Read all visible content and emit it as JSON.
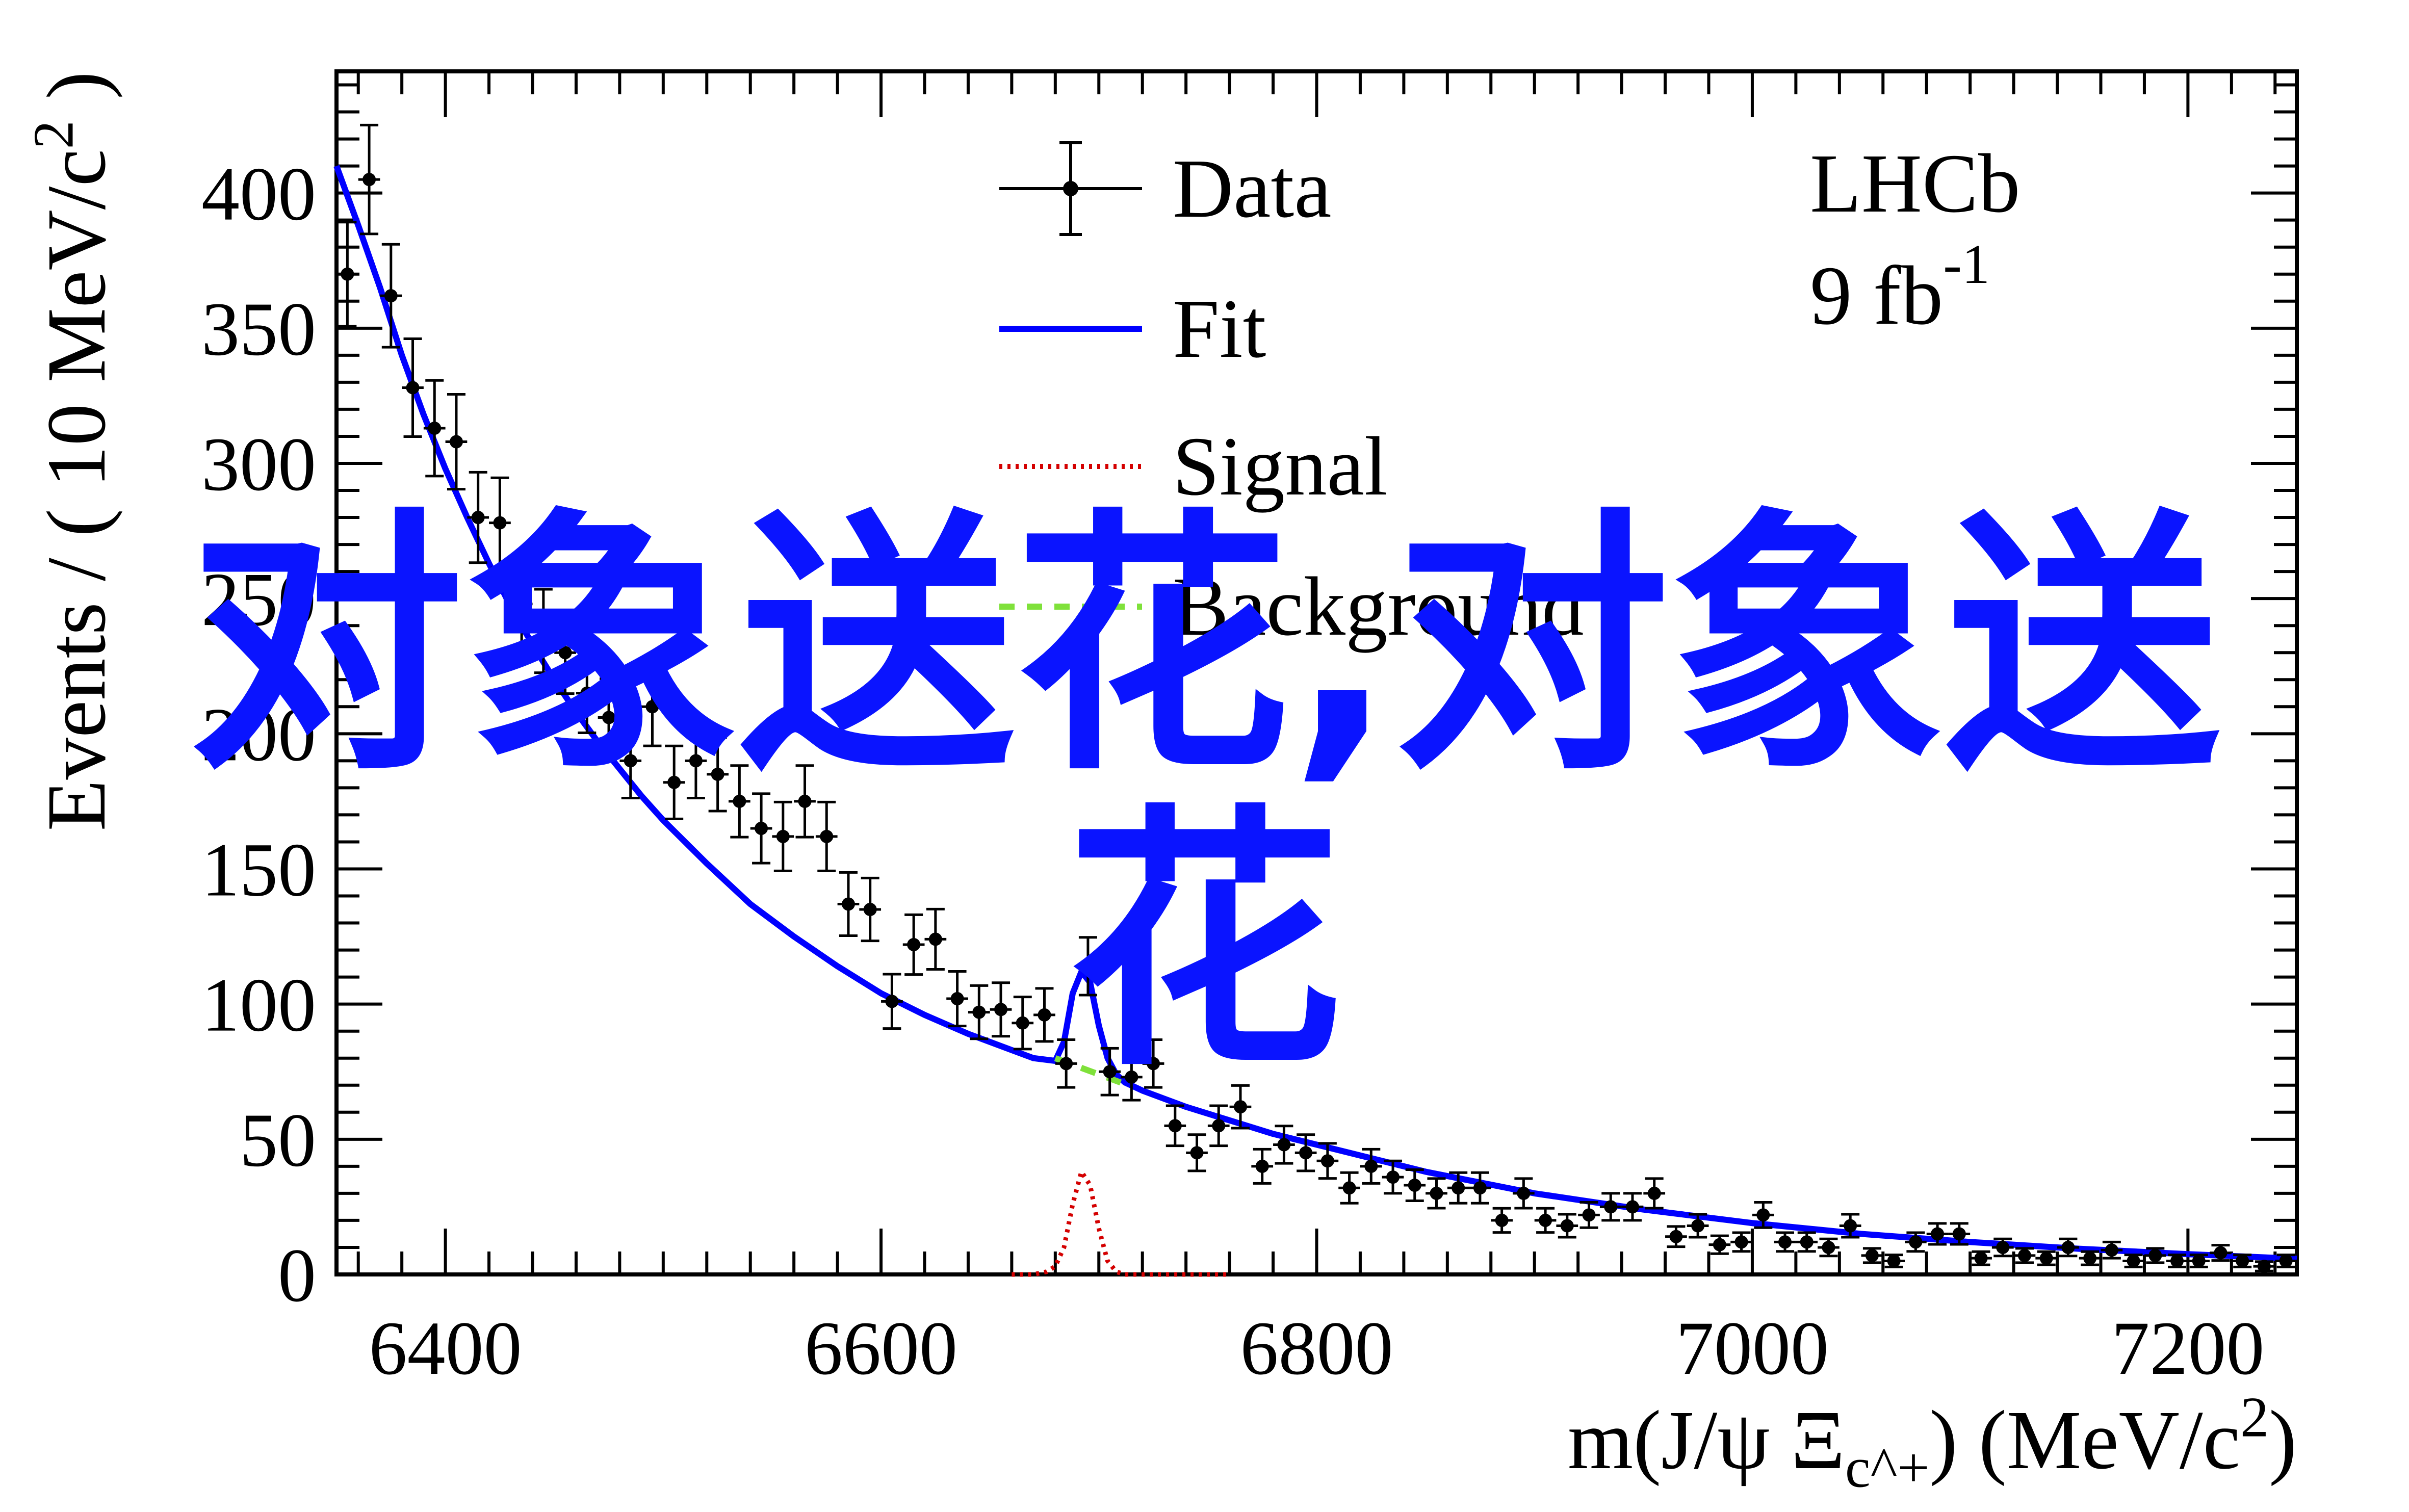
{
  "chart_data": {
    "type": "scatter",
    "xlabel": "m(J/ψ Ξ_c^+) (MeV/c^2)",
    "ylabel": "Events / ( 10 MeV/c^2 )",
    "xlim": [
      6350,
      7250
    ],
    "ylim": [
      0,
      445
    ],
    "x_ticks": [
      6400,
      6600,
      6800,
      7000,
      7200
    ],
    "y_ticks": [
      0,
      50,
      100,
      150,
      200,
      250,
      300,
      350,
      400
    ],
    "grid": false,
    "legend_position": "top-center",
    "experiment_label": "LHCb",
    "luminosity_label": "9 fb",
    "luminosity_exponent": "-1",
    "legend": [
      {
        "name": "Data",
        "style": "points-with-errors",
        "color": "#000000"
      },
      {
        "name": "Fit",
        "style": "solid-line",
        "color": "#0000ff"
      },
      {
        "name": "Signal",
        "style": "dotted-line",
        "color": "#d40000"
      },
      {
        "name": "Background",
        "style": "dashed-line",
        "color": "#7fe13a"
      }
    ],
    "series": [
      {
        "name": "Data",
        "x": [
          6355,
          6365,
          6375,
          6385,
          6395,
          6405,
          6415,
          6425,
          6435,
          6445,
          6455,
          6465,
          6475,
          6485,
          6495,
          6505,
          6515,
          6525,
          6535,
          6545,
          6555,
          6565,
          6575,
          6585,
          6595,
          6605,
          6615,
          6625,
          6635,
          6645,
          6655,
          6665,
          6675,
          6685,
          6695,
          6705,
          6715,
          6725,
          6735,
          6745,
          6755,
          6765,
          6775,
          6785,
          6795,
          6805,
          6815,
          6825,
          6835,
          6845,
          6855,
          6865,
          6875,
          6885,
          6895,
          6905,
          6915,
          6925,
          6935,
          6945,
          6955,
          6965,
          6975,
          6985,
          6995,
          7005,
          7015,
          7025,
          7035,
          7045,
          7055,
          7065,
          7075,
          7085,
          7095,
          7105,
          7115,
          7125,
          7135,
          7145,
          7155,
          7165,
          7175,
          7185,
          7195,
          7205,
          7215,
          7225,
          7235,
          7245
        ],
        "y": [
          370,
          405,
          362,
          328,
          313,
          308,
          280,
          278,
          248,
          238,
          230,
          215,
          206,
          190,
          210,
          182,
          190,
          185,
          175,
          165,
          162,
          175,
          162,
          137,
          135,
          101,
          122,
          124,
          102,
          97,
          98,
          93,
          96,
          78,
          114,
          75,
          73,
          78,
          55,
          45,
          55,
          62,
          40,
          48,
          45,
          42,
          32,
          40,
          36,
          33,
          30,
          32,
          32,
          20,
          30,
          20,
          18,
          22,
          25,
          25,
          30,
          14,
          18,
          11,
          12,
          22,
          12,
          12,
          10,
          18,
          7,
          5,
          12,
          15,
          15,
          6,
          10,
          7,
          6,
          10,
          6,
          9,
          5,
          7,
          5,
          5,
          8,
          5,
          3,
          5
        ]
      },
      {
        "name": "Fit",
        "color": "#0000ff",
        "x": [
          6350,
          6360,
          6370,
          6380,
          6390,
          6400,
          6410,
          6420,
          6430,
          6440,
          6450,
          6460,
          6470,
          6480,
          6490,
          6500,
          6520,
          6540,
          6560,
          6580,
          6600,
          6620,
          6640,
          6660,
          6670,
          6680,
          6684,
          6688,
          6692,
          6696,
          6700,
          6704,
          6708,
          6712,
          6720,
          6740,
          6760,
          6780,
          6800,
          6850,
          6900,
          6950,
          7000,
          7050,
          7100,
          7150,
          7200,
          7250
        ],
        "y": [
          410,
          388,
          365,
          340,
          318,
          298,
          280,
          263,
          247,
          233,
          220,
          208,
          197,
          187,
          177,
          168,
          152,
          137,
          125,
          114,
          104,
          96,
          89,
          83,
          80,
          79,
          86,
          104,
          112,
          108,
          92,
          80,
          74,
          71,
          68,
          62,
          57,
          52,
          48,
          38,
          30,
          24,
          19,
          15,
          12,
          9.5,
          7.5,
          5.8
        ]
      },
      {
        "name": "Signal",
        "color": "#d40000",
        "x": [
          6660,
          6670,
          6676,
          6680,
          6684,
          6688,
          6692,
          6696,
          6700,
          6704,
          6708,
          6712,
          6720,
          6740,
          6760
        ],
        "y": [
          0,
          0,
          1,
          3,
          10,
          26,
          38,
          33,
          17,
          5,
          1,
          0,
          0,
          0,
          0
        ]
      },
      {
        "name": "Background",
        "color": "#7fe13a",
        "x": [
          6680,
          6690,
          6700,
          6710
        ],
        "y": [
          80,
          77,
          74,
          71
        ]
      }
    ]
  },
  "overlay_text": {
    "line1": "对象送花,对象送",
    "line2": "花",
    "color": "#0a14ff"
  }
}
